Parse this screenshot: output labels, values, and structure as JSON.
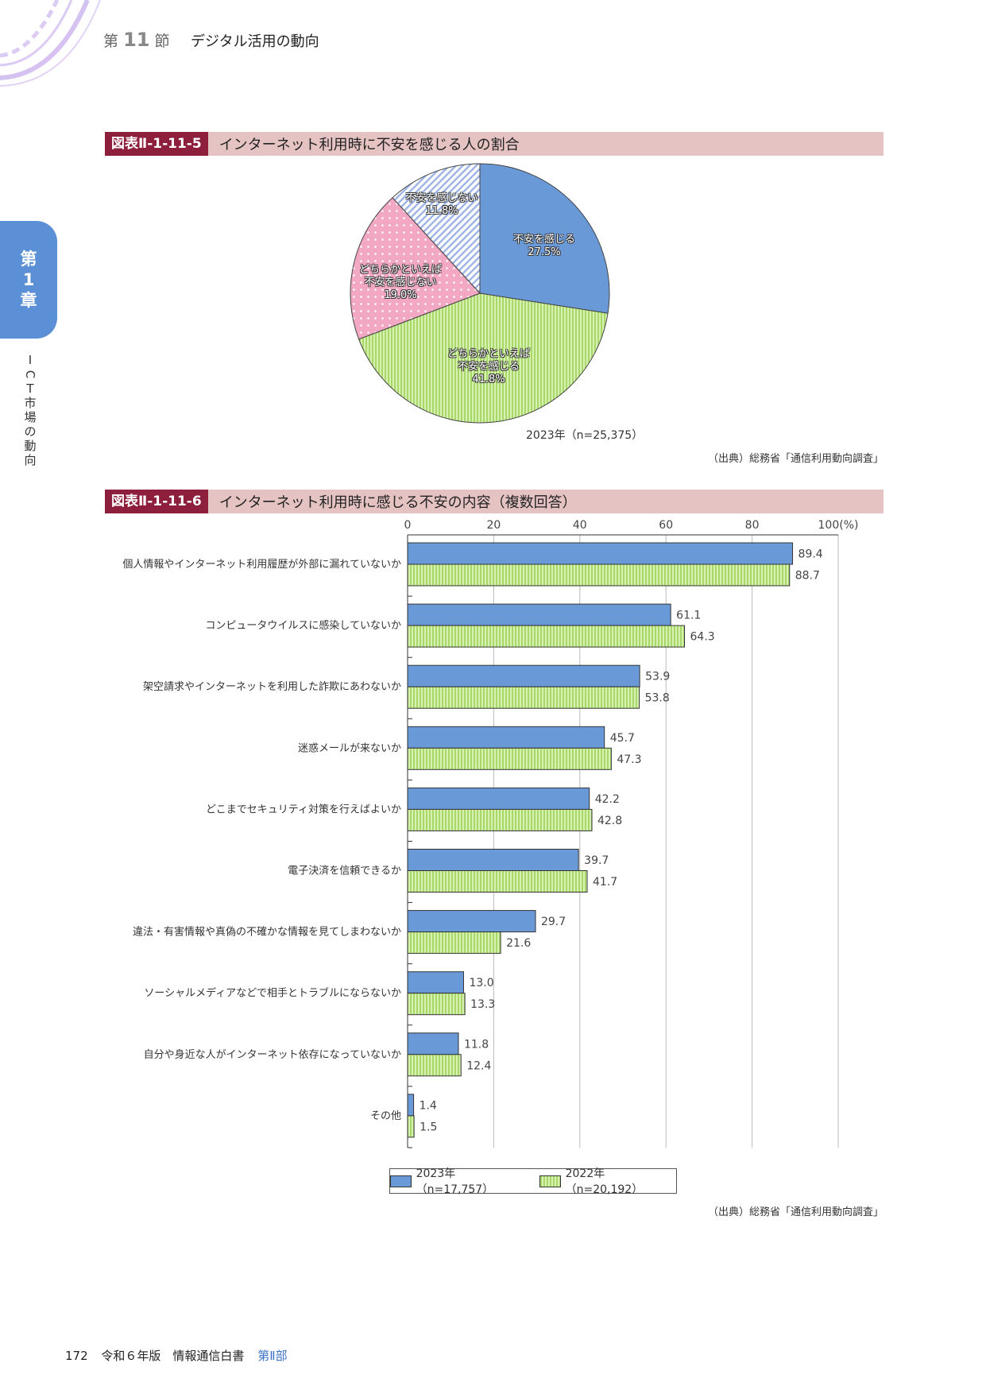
{
  "header": {
    "section_prefix": "第",
    "section_number": "11",
    "section_suffix": "節",
    "section_title": "デジタル活用の動向"
  },
  "sidebar": {
    "chapter_chars": [
      "第",
      "1",
      "章"
    ],
    "chapter_title_chars": [
      "I",
      "C",
      "T",
      "市",
      "場",
      "の",
      "動",
      "向"
    ]
  },
  "figure1": {
    "badge": "図表Ⅱ-1-11-5",
    "title": "インターネット利用時に不安を感じる人の割合",
    "note": "2023年（n=25,375）",
    "source": "（出典）総務省「通信利用動向調査」"
  },
  "figure2": {
    "badge": "図表Ⅱ-1-11-6",
    "title": "インターネット利用時に感じる不安の内容（複数回答）",
    "source": "（出典）総務省「通信利用動向調査」",
    "legend": [
      "2023年（n=17,757）",
      "2022年（n=20,192）"
    ]
  },
  "colors": {
    "blue": "#6a99d8",
    "green": "#a6d96a",
    "pink": "#f2a7c3",
    "hatch": "#9fb6e6",
    "badge": "#8e1f3c"
  },
  "footer": {
    "page": "172",
    "book": "令和６年版　情報通信白書",
    "part": "第Ⅱ部"
  },
  "chart_data": [
    {
      "type": "pie",
      "title": "インターネット利用時に不安を感じる人の割合",
      "slices": [
        {
          "lines": [
            "不安を感じる",
            "27.5%"
          ],
          "value": 27.5
        },
        {
          "lines": [
            "どちらかといえば",
            "不安を感じる",
            "41.8%"
          ],
          "value": 41.8
        },
        {
          "lines": [
            "どちらかといえば",
            "不安を感じない",
            "19.0%"
          ],
          "value": 19.0
        },
        {
          "lines": [
            "不安を感じない",
            "11.8%"
          ],
          "value": 11.8
        }
      ]
    },
    {
      "type": "bar",
      "orientation": "horizontal",
      "title": "インターネット利用時に感じる不安の内容（複数回答）",
      "categories": [
        "個人情報やインターネット利用履歴が外部に漏れていないか",
        "コンピュータウイルスに感染していないか",
        "架空請求やインターネットを利用した詐欺にあわないか",
        "迷惑メールが来ないか",
        "どこまでセキュリティ対策を行えばよいか",
        "電子決済を信頼できるか",
        "違法・有害情報や真偽の不確かな情報を見てしまわないか",
        "ソーシャルメディアなどで相手とトラブルにならないか",
        "自分や身近な人がインターネット依存になっていないか",
        "その他"
      ],
      "series": [
        {
          "name": "2023年（n=17,757）",
          "values": [
            89.4,
            61.1,
            53.9,
            45.7,
            42.2,
            39.7,
            29.7,
            13.0,
            11.8,
            1.4
          ]
        },
        {
          "name": "2022年（n=20,192）",
          "values": [
            88.7,
            64.3,
            53.8,
            47.3,
            42.8,
            41.7,
            21.6,
            13.3,
            12.4,
            1.5
          ]
        }
      ],
      "value_labels": [
        [
          "89.4",
          "61.1",
          "53.9",
          "45.7",
          "42.2",
          "39.7",
          "29.7",
          "13.0",
          "11.8",
          "1.4"
        ],
        [
          "88.7",
          "64.3",
          "53.8",
          "47.3",
          "42.8",
          "41.7",
          "21.6",
          "13.3",
          "12.4",
          "1.5"
        ]
      ],
      "xlim": [
        0,
        100
      ],
      "ticks": [
        0,
        20,
        40,
        60,
        80,
        100
      ],
      "tick_labels": [
        "0",
        "20",
        "40",
        "60",
        "80",
        "100(%)"
      ]
    }
  ]
}
